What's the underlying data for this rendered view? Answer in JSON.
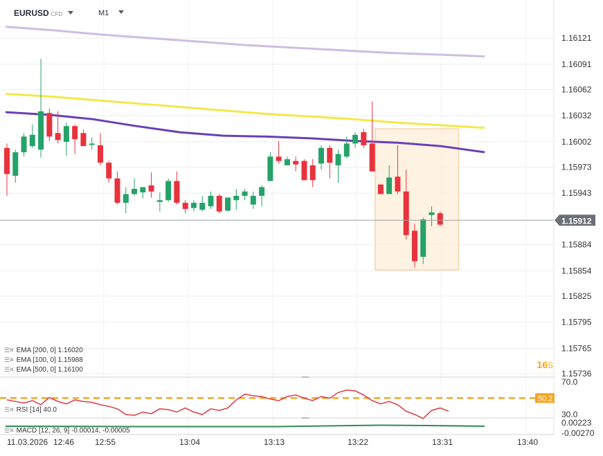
{
  "header": {
    "symbol": "EURUSD",
    "instrument_type": "CFD",
    "timeframe": "M1",
    "countdown_value": "16",
    "countdown_unit": "S"
  },
  "indicators": {
    "ema200": "EMA [200, 0] 1.16020",
    "ema100": "EMA [100, 0] 1.15988",
    "ema500": "EMA [500, 0] 1.16100",
    "rsi": "RSI [14] 40.0",
    "macd": "MACD [12, 26, 9] -0.00014, -0.00005"
  },
  "colors": {
    "bull": "#26a269",
    "bear": "#e8323c",
    "ema200": "#f4e84a",
    "ema100": "#6a3fb5",
    "ema500": "#cdbde3",
    "rsi_line": "#e0383e",
    "rsi_mid": "#f5a623",
    "macd_line": "#2e8b57",
    "highlight_fill": "#fdecd6",
    "highlight_stroke": "#f2c38b"
  },
  "chart_data": {
    "type": "candlestick",
    "price_axis_ticks": [
      "1.16121",
      "1.16091",
      "1.16062",
      "1.16032",
      "1.16002",
      "1.15973",
      "1.15943",
      "1.15884",
      "1.15854",
      "1.15825",
      "1.15795",
      "1.15765",
      "1.15736"
    ],
    "price_range": [
      1.1573,
      1.1614
    ],
    "current_price": "1.15912",
    "time_axis_labels": [
      "11.03.2026",
      "12:46",
      "12:55",
      "13:04",
      "13:13",
      "13:22",
      "13:31",
      "13:40"
    ],
    "candles": [
      {
        "o": 1.15995,
        "h": 1.16,
        "l": 1.1594,
        "c": 1.15965
      },
      {
        "o": 1.15963,
        "h": 1.15993,
        "l": 1.15955,
        "c": 1.1599
      },
      {
        "o": 1.1599,
        "h": 1.16012,
        "l": 1.15985,
        "c": 1.16008
      },
      {
        "o": 1.15997,
        "h": 1.16022,
        "l": 1.15995,
        "c": 1.1601
      },
      {
        "o": 1.15993,
        "h": 1.16097,
        "l": 1.15984,
        "c": 1.16037
      },
      {
        "o": 1.16035,
        "h": 1.1604,
        "l": 1.16003,
        "c": 1.16008
      },
      {
        "o": 1.16012,
        "h": 1.16037,
        "l": 1.16,
        "c": 1.16004
      },
      {
        "o": 1.16002,
        "h": 1.16024,
        "l": 1.15986,
        "c": 1.1602
      },
      {
        "o": 1.1602,
        "h": 1.16022,
        "l": 1.15988,
        "c": 1.16005
      },
      {
        "o": 1.16012,
        "h": 1.16016,
        "l": 1.15997,
        "c": 1.15997
      },
      {
        "o": 1.16,
        "h": 1.16007,
        "l": 1.15993,
        "c": 1.16
      },
      {
        "o": 1.15998,
        "h": 1.16012,
        "l": 1.15975,
        "c": 1.15978
      },
      {
        "o": 1.15978,
        "h": 1.1598,
        "l": 1.15955,
        "c": 1.1596
      },
      {
        "o": 1.1596,
        "h": 1.15968,
        "l": 1.1593,
        "c": 1.15932
      },
      {
        "o": 1.15932,
        "h": 1.1595,
        "l": 1.1592,
        "c": 1.15942
      },
      {
        "o": 1.15942,
        "h": 1.1596,
        "l": 1.1594,
        "c": 1.15948
      },
      {
        "o": 1.15944,
        "h": 1.1595,
        "l": 1.15937,
        "c": 1.1595
      },
      {
        "o": 1.15952,
        "h": 1.15967,
        "l": 1.15938,
        "c": 1.15945
      },
      {
        "o": 1.15933,
        "h": 1.15944,
        "l": 1.15922,
        "c": 1.15935
      },
      {
        "o": 1.15935,
        "h": 1.1596,
        "l": 1.15933,
        "c": 1.15957
      },
      {
        "o": 1.15957,
        "h": 1.15968,
        "l": 1.1593,
        "c": 1.15932
      },
      {
        "o": 1.15932,
        "h": 1.15935,
        "l": 1.1592,
        "c": 1.15925
      },
      {
        "o": 1.15926,
        "h": 1.15935,
        "l": 1.15922,
        "c": 1.15932
      },
      {
        "o": 1.15924,
        "h": 1.1594,
        "l": 1.15922,
        "c": 1.15932
      },
      {
        "o": 1.15928,
        "h": 1.15945,
        "l": 1.15925,
        "c": 1.1594
      },
      {
        "o": 1.1594,
        "h": 1.15942,
        "l": 1.1592,
        "c": 1.15922
      },
      {
        "o": 1.15923,
        "h": 1.15938,
        "l": 1.15922,
        "c": 1.15938
      },
      {
        "o": 1.15935,
        "h": 1.15948,
        "l": 1.15924,
        "c": 1.1594
      },
      {
        "o": 1.1594,
        "h": 1.15948,
        "l": 1.15935,
        "c": 1.15945
      },
      {
        "o": 1.1593,
        "h": 1.15945,
        "l": 1.15925,
        "c": 1.1594
      },
      {
        "o": 1.1594,
        "h": 1.15952,
        "l": 1.15928,
        "c": 1.1595
      },
      {
        "o": 1.15957,
        "h": 1.1599,
        "l": 1.15957,
        "c": 1.15985
      },
      {
        "o": 1.15985,
        "h": 1.16003,
        "l": 1.15977,
        "c": 1.1598
      },
      {
        "o": 1.15975,
        "h": 1.15985,
        "l": 1.15975,
        "c": 1.15982
      },
      {
        "o": 1.1598,
        "h": 1.15985,
        "l": 1.15968,
        "c": 1.15976
      },
      {
        "o": 1.1598,
        "h": 1.15982,
        "l": 1.15958,
        "c": 1.15958
      },
      {
        "o": 1.15975,
        "h": 1.15982,
        "l": 1.1595,
        "c": 1.15958
      },
      {
        "o": 1.15977,
        "h": 1.15998,
        "l": 1.1597,
        "c": 1.15995
      },
      {
        "o": 1.15995,
        "h": 1.15998,
        "l": 1.1596,
        "c": 1.15978
      },
      {
        "o": 1.15975,
        "h": 1.15993,
        "l": 1.15955,
        "c": 1.15988
      },
      {
        "o": 1.15985,
        "h": 1.16008,
        "l": 1.15983,
        "c": 1.16
      },
      {
        "o": 1.16,
        "h": 1.16013,
        "l": 1.15995,
        "c": 1.1601
      },
      {
        "o": 1.16013,
        "h": 1.16017,
        "l": 1.15995,
        "c": 1.15998
      },
      {
        "o": 1.16,
        "h": 1.16048,
        "l": 1.15968,
        "c": 1.15968
      },
      {
        "o": 1.15953,
        "h": 1.15953,
        "l": 1.15942,
        "c": 1.15942
      },
      {
        "o": 1.15942,
        "h": 1.15975,
        "l": 1.15942,
        "c": 1.15961
      },
      {
        "o": 1.15962,
        "h": 1.15998,
        "l": 1.15942,
        "c": 1.15945
      },
      {
        "o": 1.15945,
        "h": 1.1597,
        "l": 1.1589,
        "c": 1.15895
      },
      {
        "o": 1.159,
        "h": 1.15908,
        "l": 1.15858,
        "c": 1.15865
      },
      {
        "o": 1.1587,
        "h": 1.15915,
        "l": 1.15862,
        "c": 1.15913
      },
      {
        "o": 1.15918,
        "h": 1.15928,
        "l": 1.15905,
        "c": 1.15921
      },
      {
        "o": 1.1592,
        "h": 1.15922,
        "l": 1.15905,
        "c": 1.15907
      }
    ],
    "ema200_values": [
      1.16057,
      1.16054,
      1.1605,
      1.16046,
      1.16042,
      1.16038,
      1.16034,
      1.16031,
      1.16028,
      1.16024,
      1.16021,
      1.16018
    ],
    "ema100_values": [
      1.16036,
      1.16033,
      1.16028,
      1.1602,
      1.16013,
      1.16009,
      1.16008,
      1.16006,
      1.16003,
      1.16001,
      1.15997,
      1.1599
    ],
    "ema500_values": [
      1.16134,
      1.1613,
      1.16125,
      1.16121,
      1.16117,
      1.16113,
      1.1611,
      1.16107,
      1.16104,
      1.16102,
      1.161
    ],
    "rsi": {
      "ticks": [
        "70.0",
        "30.0"
      ],
      "midline_label": "50.2",
      "values": [
        48,
        46,
        44,
        47,
        42,
        51,
        46,
        43,
        48,
        46,
        45,
        42,
        40,
        37,
        30,
        29,
        33,
        31,
        37,
        36,
        33,
        38,
        33,
        30,
        37,
        35,
        38,
        48,
        55,
        53,
        52,
        49,
        47,
        52,
        54,
        50,
        47,
        52,
        50,
        57,
        60,
        59,
        54,
        47,
        43,
        46,
        42,
        34,
        30,
        25,
        35,
        38,
        34
      ]
    },
    "macd": {
      "ticks": [
        "0.00223",
        "-0.00270"
      ]
    },
    "highlight_box": {
      "price_top": 1.16017,
      "price_bottom": 1.15855,
      "candle_start": 44,
      "candle_end": 51
    }
  }
}
